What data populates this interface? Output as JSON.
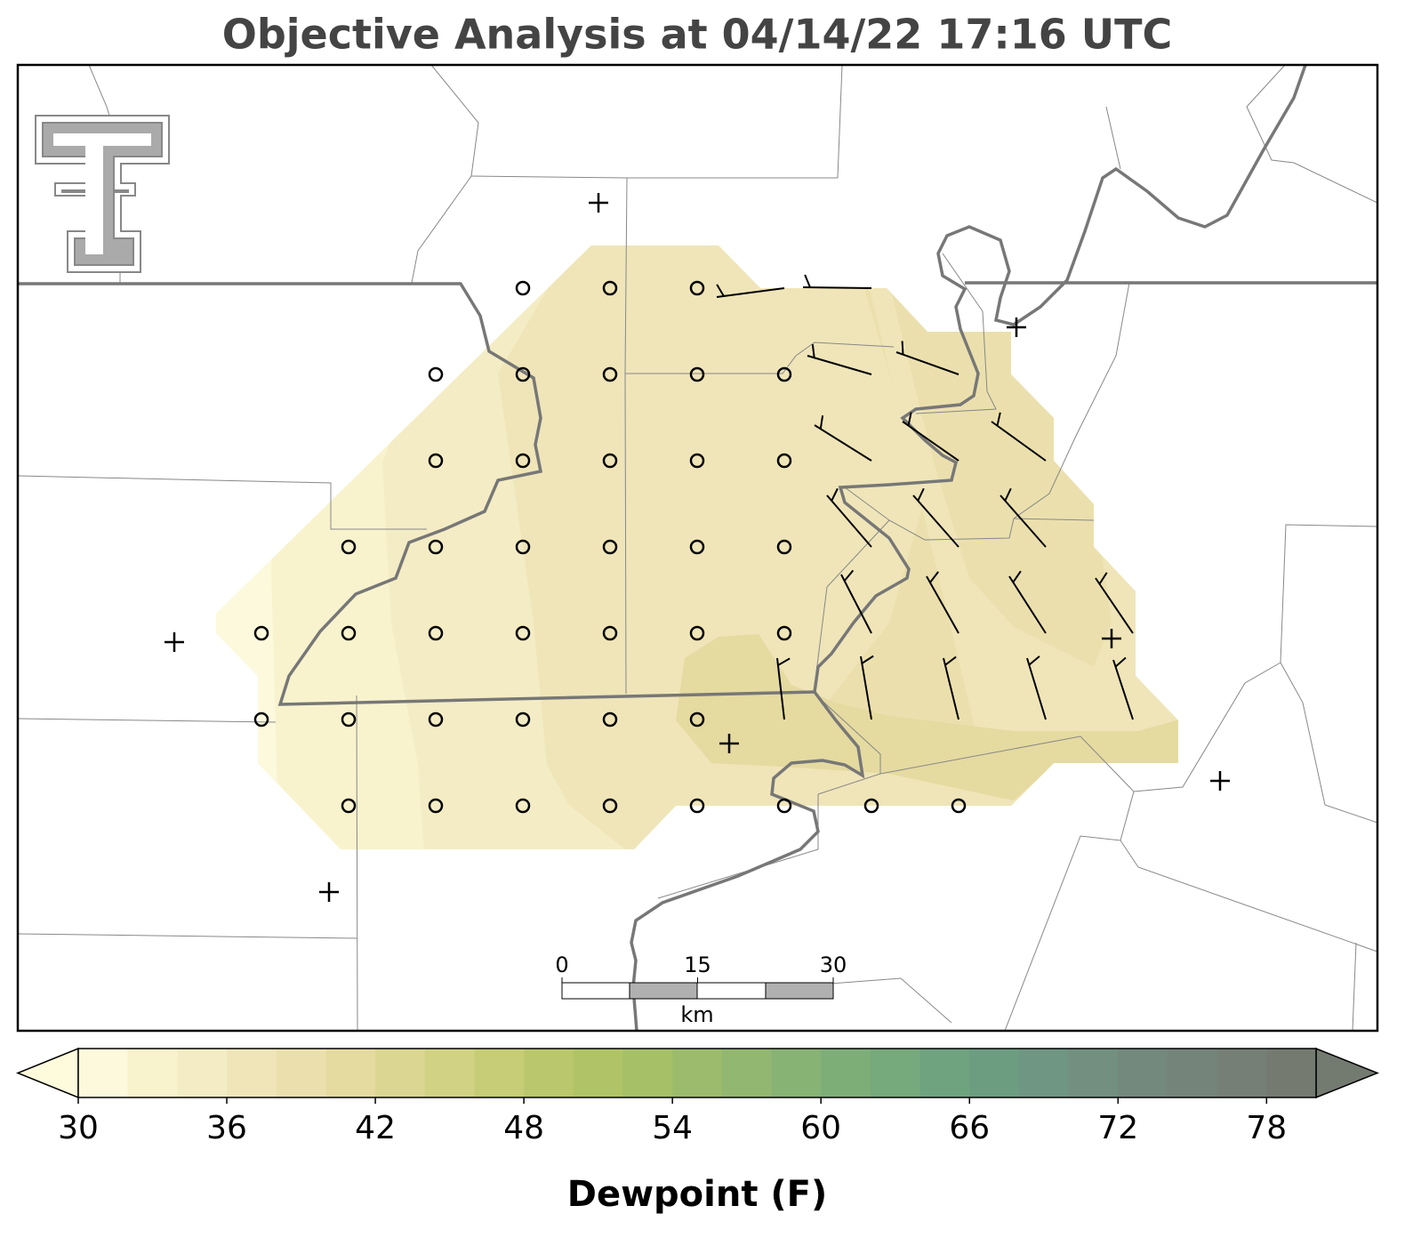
{
  "title": "Objective Analysis at 04/14/22 17:16 UTC",
  "colorbar": {
    "label": "Dewpoint (F)",
    "lim": [
      30,
      80
    ],
    "ticks": [
      30,
      36,
      42,
      48,
      54,
      60,
      66,
      72,
      78
    ],
    "under_color": "#fdfbdc",
    "over_color": "#737a70",
    "colors": [
      "#fcf9dc",
      "#f8f3cd",
      "#f4ecc4",
      "#efe5b8",
      "#ebe0ad",
      "#e5daa0",
      "#dbd691",
      "#d1d283",
      "#c6cd76",
      "#bbc76c",
      "#b0c467",
      "#a6c068",
      "#9cbb6c",
      "#92b770",
      "#87b374",
      "#7eae78",
      "#76a97c",
      "#6fa380",
      "#6c9d81",
      "#6f9682",
      "#728f80",
      "#74897d",
      "#75847a",
      "#757f76",
      "#747a70"
    ]
  },
  "scale_bar": {
    "ticks": [
      0,
      15,
      30
    ],
    "unit": "km"
  }
}
